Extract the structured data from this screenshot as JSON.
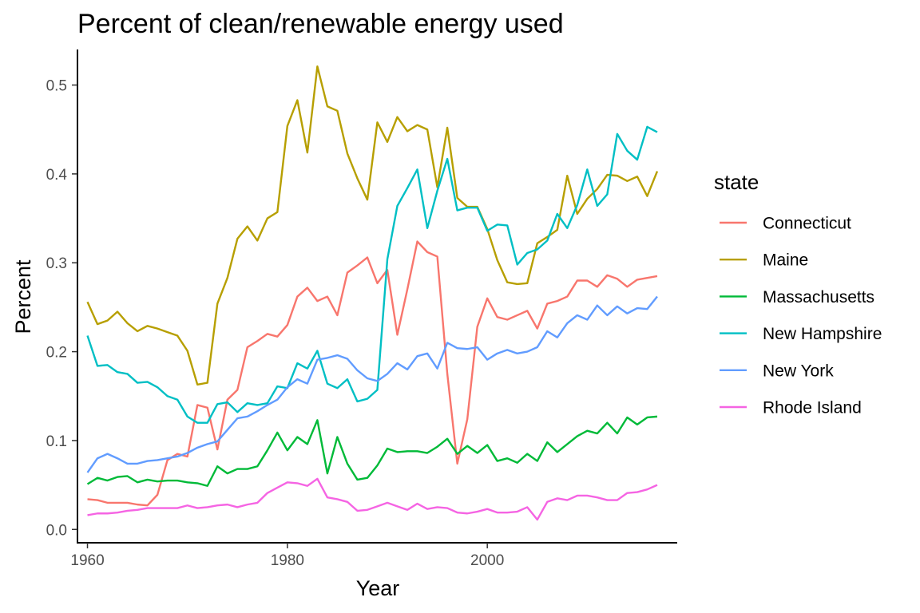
{
  "chart_data": {
    "type": "line",
    "title": "Percent of clean/renewable energy used",
    "xlabel": "Year",
    "ylabel": "Percent",
    "xlim": [
      1959,
      2019
    ],
    "ylim": [
      -0.015,
      0.54
    ],
    "x_ticks": [
      1960,
      1980,
      2000
    ],
    "y_ticks": [
      0.0,
      0.1,
      0.2,
      0.3,
      0.4,
      0.5
    ],
    "x_tick_labels": [
      "1960",
      "1980",
      "2000"
    ],
    "y_tick_labels": [
      "0.0",
      "0.1",
      "0.2",
      "0.3",
      "0.4",
      "0.5"
    ],
    "grid": false,
    "legend": {
      "title": "state",
      "position": "right"
    },
    "x": [
      1960,
      1961,
      1962,
      1963,
      1964,
      1965,
      1966,
      1967,
      1968,
      1969,
      1970,
      1971,
      1972,
      1973,
      1974,
      1975,
      1976,
      1977,
      1978,
      1979,
      1980,
      1981,
      1982,
      1983,
      1984,
      1985,
      1986,
      1987,
      1988,
      1989,
      1990,
      1991,
      1992,
      1993,
      1994,
      1995,
      1996,
      1997,
      1998,
      1999,
      2000,
      2001,
      2002,
      2003,
      2004,
      2005,
      2006,
      2007,
      2008,
      2009,
      2010,
      2011,
      2012,
      2013,
      2014,
      2015,
      2016,
      2017
    ],
    "series": [
      {
        "name": "Connecticut",
        "color": "#F8766D",
        "values": [
          0.034,
          0.033,
          0.03,
          0.03,
          0.03,
          0.028,
          0.027,
          0.039,
          0.078,
          0.085,
          0.082,
          0.14,
          0.137,
          0.09,
          0.146,
          0.157,
          0.205,
          0.212,
          0.22,
          0.217,
          0.23,
          0.262,
          0.272,
          0.257,
          0.262,
          0.241,
          0.289,
          0.297,
          0.306,
          0.277,
          0.292,
          0.219,
          0.27,
          0.324,
          0.312,
          0.307,
          0.175,
          0.074,
          0.124,
          0.228,
          0.26,
          0.239,
          0.236,
          0.241,
          0.246,
          0.226,
          0.254,
          0.257,
          0.262,
          0.28,
          0.28,
          0.273,
          0.286,
          0.282,
          0.273,
          0.281,
          0.283,
          0.285
        ]
      },
      {
        "name": "Maine",
        "color": "#B79F00",
        "values": [
          0.256,
          0.231,
          0.235,
          0.245,
          0.232,
          0.223,
          0.229,
          0.226,
          0.222,
          0.218,
          0.201,
          0.163,
          0.165,
          0.254,
          0.283,
          0.327,
          0.341,
          0.325,
          0.35,
          0.357,
          0.454,
          0.483,
          0.424,
          0.521,
          0.476,
          0.471,
          0.423,
          0.395,
          0.371,
          0.458,
          0.436,
          0.464,
          0.448,
          0.455,
          0.45,
          0.385,
          0.452,
          0.373,
          0.363,
          0.363,
          0.338,
          0.303,
          0.278,
          0.276,
          0.277,
          0.322,
          0.329,
          0.337,
          0.398,
          0.355,
          0.372,
          0.383,
          0.399,
          0.398,
          0.392,
          0.397,
          0.375,
          0.403
        ]
      },
      {
        "name": "Massachusetts",
        "color": "#00BA38",
        "values": [
          0.051,
          0.058,
          0.055,
          0.059,
          0.06,
          0.053,
          0.056,
          0.054,
          0.055,
          0.055,
          0.053,
          0.052,
          0.049,
          0.071,
          0.063,
          0.068,
          0.068,
          0.071,
          0.089,
          0.109,
          0.089,
          0.104,
          0.096,
          0.123,
          0.063,
          0.104,
          0.074,
          0.056,
          0.058,
          0.072,
          0.091,
          0.087,
          0.088,
          0.088,
          0.086,
          0.093,
          0.102,
          0.085,
          0.094,
          0.086,
          0.095,
          0.077,
          0.08,
          0.075,
          0.085,
          0.077,
          0.098,
          0.087,
          0.096,
          0.105,
          0.111,
          0.108,
          0.12,
          0.108,
          0.126,
          0.118,
          0.126,
          0.127
        ]
      },
      {
        "name": "New Hampshire",
        "color": "#00BFC4",
        "values": [
          0.218,
          0.184,
          0.185,
          0.177,
          0.175,
          0.165,
          0.166,
          0.16,
          0.15,
          0.146,
          0.127,
          0.12,
          0.12,
          0.141,
          0.143,
          0.132,
          0.142,
          0.14,
          0.142,
          0.161,
          0.159,
          0.187,
          0.181,
          0.201,
          0.164,
          0.159,
          0.169,
          0.144,
          0.147,
          0.157,
          0.304,
          0.364,
          0.384,
          0.405,
          0.339,
          0.381,
          0.417,
          0.359,
          0.362,
          0.362,
          0.336,
          0.343,
          0.342,
          0.298,
          0.311,
          0.315,
          0.325,
          0.355,
          0.339,
          0.365,
          0.405,
          0.364,
          0.377,
          0.445,
          0.426,
          0.416,
          0.453,
          0.447
        ]
      },
      {
        "name": "New York",
        "color": "#619CFF",
        "values": [
          0.064,
          0.08,
          0.085,
          0.08,
          0.074,
          0.074,
          0.077,
          0.078,
          0.08,
          0.082,
          0.086,
          0.092,
          0.096,
          0.099,
          0.112,
          0.125,
          0.127,
          0.133,
          0.14,
          0.146,
          0.16,
          0.169,
          0.164,
          0.191,
          0.193,
          0.196,
          0.192,
          0.179,
          0.17,
          0.167,
          0.175,
          0.187,
          0.18,
          0.195,
          0.198,
          0.181,
          0.21,
          0.204,
          0.203,
          0.205,
          0.191,
          0.198,
          0.202,
          0.198,
          0.2,
          0.205,
          0.223,
          0.216,
          0.232,
          0.241,
          0.236,
          0.252,
          0.241,
          0.251,
          0.243,
          0.249,
          0.248,
          0.262
        ]
      },
      {
        "name": "Rhode Island",
        "color": "#F564E3",
        "values": [
          0.016,
          0.018,
          0.018,
          0.019,
          0.021,
          0.022,
          0.024,
          0.024,
          0.024,
          0.024,
          0.027,
          0.024,
          0.025,
          0.027,
          0.028,
          0.025,
          0.028,
          0.03,
          0.041,
          0.047,
          0.053,
          0.052,
          0.049,
          0.057,
          0.036,
          0.034,
          0.031,
          0.021,
          0.022,
          0.026,
          0.03,
          0.026,
          0.022,
          0.029,
          0.023,
          0.025,
          0.024,
          0.019,
          0.018,
          0.02,
          0.023,
          0.019,
          0.019,
          0.02,
          0.025,
          0.011,
          0.031,
          0.035,
          0.033,
          0.038,
          0.038,
          0.036,
          0.033,
          0.033,
          0.041,
          0.042,
          0.045,
          0.05
        ]
      }
    ]
  }
}
